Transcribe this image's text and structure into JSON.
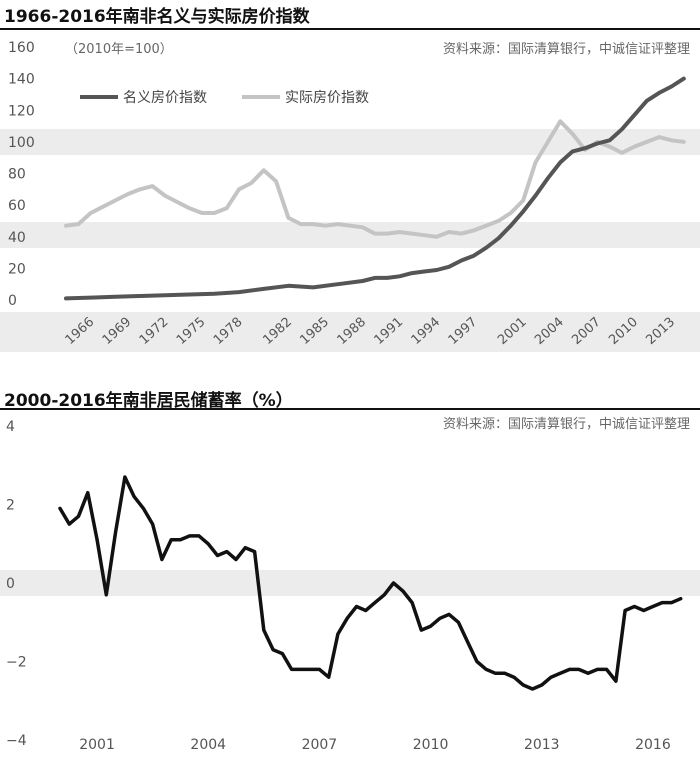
{
  "chart_data": [
    {
      "type": "line",
      "title": "1966-2016年南非名义与实际房价指数",
      "subtitle": "（2010年=100）",
      "source": "资料来源：国际清算银行，中诚信证评整理",
      "ylim": [
        0,
        160
      ],
      "yticks": [
        "0",
        "20",
        "40",
        "60",
        "80",
        "100",
        "120",
        "140",
        "160"
      ],
      "xlim": [
        1966,
        2016.5
      ],
      "xticks": [
        "1966",
        "1969",
        "1972",
        "1975",
        "1978",
        "1982",
        "1985",
        "1988",
        "1991",
        "1994",
        "1997",
        "2001",
        "2004",
        "2007",
        "2010",
        "2013"
      ],
      "legend_position": "top-left",
      "series": [
        {
          "name": "名义房价指数",
          "color": "#555555",
          "x": [
            1966,
            1968,
            1970,
            1972,
            1974,
            1976,
            1978,
            1980,
            1982,
            1984,
            1986,
            1988,
            1990,
            1991,
            1992,
            1993,
            1994,
            1995,
            1996,
            1997,
            1998,
            1999,
            2000,
            2001,
            2002,
            2003,
            2004,
            2005,
            2006,
            2007,
            2008,
            2009,
            2010,
            2011,
            2012,
            2013,
            2014,
            2015,
            2016
          ],
          "values": [
            1,
            1.5,
            2,
            2.5,
            3,
            3.5,
            4,
            5,
            7,
            9,
            8,
            10,
            12,
            14,
            14,
            15,
            17,
            18,
            19,
            21,
            25,
            28,
            33,
            39,
            47,
            56,
            66,
            77,
            87,
            94,
            96,
            99,
            101,
            108,
            117,
            126,
            131,
            135,
            140
          ]
        },
        {
          "name": "实际房价指数",
          "color": "#c4c4c4",
          "x": [
            1966,
            1967,
            1968,
            1969,
            1970,
            1971,
            1972,
            1973,
            1974,
            1975,
            1976,
            1977,
            1978,
            1979,
            1980,
            1981,
            1982,
            1983,
            1984,
            1985,
            1986,
            1987,
            1988,
            1989,
            1990,
            1991,
            1992,
            1993,
            1994,
            1995,
            1996,
            1997,
            1998,
            1999,
            2000,
            2001,
            2002,
            2003,
            2004,
            2005,
            2006,
            2007,
            2008,
            2009,
            2010,
            2011,
            2012,
            2013,
            2014,
            2015,
            2016
          ],
          "values": [
            47,
            48,
            55,
            59,
            63,
            67,
            70,
            72,
            66,
            62,
            58,
            55,
            55,
            58,
            70,
            74,
            82,
            75,
            52,
            48,
            48,
            47,
            48,
            47,
            46,
            42,
            42,
            43,
            42,
            41,
            40,
            43,
            42,
            44,
            47,
            50,
            55,
            63,
            87,
            100,
            113,
            105,
            95,
            100,
            97,
            93,
            97,
            100,
            103,
            101,
            100
          ]
        }
      ]
    },
    {
      "type": "line",
      "title": "2000-2016年南非居民储蓄率（%）",
      "source": "资料来源：国际清算银行，中诚信证评整理",
      "ylim": [
        -4,
        4
      ],
      "yticks": [
        "4",
        "2",
        "0",
        "−2",
        "−4"
      ],
      "xlim": [
        2000,
        2017
      ],
      "xticks": [
        "2001",
        "2004",
        "2007",
        "2010",
        "2013",
        "2016"
      ],
      "series": [
        {
          "color": "#111111",
          "x": [
            2000.0,
            2000.25,
            2000.5,
            2000.75,
            2001.0,
            2001.25,
            2001.5,
            2001.75,
            2002.0,
            2002.25,
            2002.5,
            2002.75,
            2003.0,
            2003.25,
            2003.5,
            2003.75,
            2004.0,
            2004.25,
            2004.5,
            2004.75,
            2005.0,
            2005.25,
            2005.5,
            2005.75,
            2006.0,
            2006.25,
            2006.5,
            2006.75,
            2007.0,
            2007.25,
            2007.5,
            2007.75,
            2008.0,
            2008.25,
            2008.5,
            2008.75,
            2009.0,
            2009.25,
            2009.5,
            2009.75,
            2010.0,
            2010.25,
            2010.5,
            2010.75,
            2011.0,
            2011.25,
            2011.5,
            2011.75,
            2012.0,
            2012.25,
            2012.5,
            2012.75,
            2013.0,
            2013.25,
            2013.5,
            2013.75,
            2014.0,
            2014.25,
            2014.5,
            2014.75,
            2015.0,
            2015.25,
            2015.5,
            2015.75,
            2016.0,
            2016.25,
            2016.5,
            2016.75
          ],
          "values": [
            1.9,
            1.5,
            1.7,
            2.3,
            1.1,
            -0.3,
            1.3,
            2.7,
            2.2,
            1.9,
            1.5,
            0.6,
            1.1,
            1.1,
            1.2,
            1.2,
            1.0,
            0.7,
            0.8,
            0.6,
            0.9,
            0.8,
            -1.2,
            -1.7,
            -1.8,
            -2.2,
            -2.2,
            -2.2,
            -2.2,
            -2.4,
            -1.3,
            -0.9,
            -0.6,
            -0.7,
            -0.5,
            -0.3,
            0.0,
            -0.2,
            -0.5,
            -1.2,
            -1.1,
            -0.9,
            -0.8,
            -1.0,
            -1.5,
            -2.0,
            -2.2,
            -2.3,
            -2.3,
            -2.4,
            -2.6,
            -2.7,
            -2.6,
            -2.4,
            -2.3,
            -2.2,
            -2.2,
            -2.3,
            -2.2,
            -2.2,
            -2.5,
            -0.7,
            -0.6,
            -0.7,
            -0.6,
            -0.5,
            -0.5,
            -0.4
          ]
        }
      ]
    }
  ]
}
